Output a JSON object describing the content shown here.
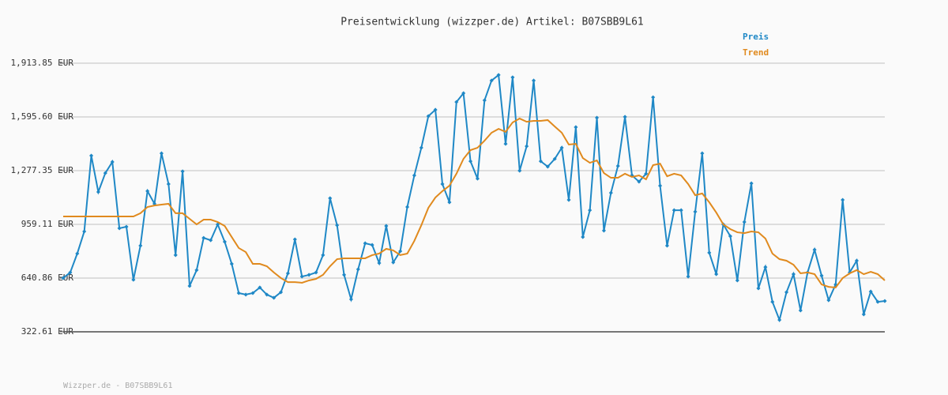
{
  "chart_data": {
    "type": "line",
    "title": "Preisentwicklung (wizzper.de) Artikel: B07SBB9L61",
    "footer": "Wizzper.de - B07SBB9L61",
    "ylim": [
      322.61,
      1913.85
    ],
    "yticks": [
      {
        "value": 322.61,
        "label": "322.61 EUR"
      },
      {
        "value": 640.86,
        "label": "640.86 EUR"
      },
      {
        "value": 959.11,
        "label": "959.11 EUR"
      },
      {
        "value": 1277.35,
        "label": "1,277.35 EUR"
      },
      {
        "value": 1595.6,
        "label": "1,595.60 EUR"
      },
      {
        "value": 1913.85,
        "label": "1,913.85 EUR"
      }
    ],
    "grid": true,
    "legend": "top-right",
    "series": [
      {
        "name": "Preis",
        "color": "#1f88c6",
        "markers": true,
        "values": [
          641,
          674,
          786,
          917,
          1366,
          1151,
          1263,
          1329,
          936,
          945,
          631,
          833,
          1156,
          1081,
          1380,
          1198,
          777,
          1273,
          594,
          688,
          879,
          865,
          959,
          856,
          725,
          552,
          543,
          552,
          585,
          543,
          524,
          557,
          669,
          870,
          650,
          660,
          674,
          777,
          1114,
          954,
          660,
          515,
          693,
          847,
          837,
          730,
          950,
          734,
          800,
          1062,
          1249,
          1413,
          1600,
          1638,
          1198,
          1090,
          1684,
          1736,
          1333,
          1230,
          1694,
          1811,
          1844,
          1436,
          1830,
          1277,
          1422,
          1811,
          1333,
          1301,
          1347,
          1413,
          1104,
          1535,
          884,
          1043,
          1591,
          922,
          1146,
          1305,
          1596,
          1249,
          1212,
          1259,
          1712,
          1188,
          833,
          1043,
          1043,
          650,
          1034,
          1380,
          791,
          664,
          959,
          889,
          627,
          973,
          1202,
          580,
          706,
          500,
          393,
          557,
          664,
          449,
          674,
          809,
          655,
          510,
          603,
          1104,
          674,
          744,
          426,
          561,
          500,
          505
        ]
      },
      {
        "name": "Trend",
        "color": "#e08a1e",
        "markers": false,
        "values": [
          1006,
          1006,
          1006,
          1006,
          1006,
          1006,
          1006,
          1006,
          1006,
          1006,
          1006,
          1025,
          1062,
          1071,
          1076,
          1081,
          1025,
          1025,
          992,
          959,
          987,
          987,
          973,
          950,
          884,
          819,
          795,
          725,
          725,
          711,
          674,
          641,
          617,
          617,
          613,
          627,
          636,
          660,
          711,
          753,
          758,
          758,
          758,
          758,
          777,
          786,
          814,
          805,
          777,
          786,
          861,
          954,
          1057,
          1118,
          1156,
          1188,
          1259,
          1347,
          1399,
          1413,
          1455,
          1502,
          1525,
          1507,
          1563,
          1586,
          1567,
          1572,
          1572,
          1577,
          1539,
          1502,
          1432,
          1436,
          1352,
          1324,
          1338,
          1263,
          1235,
          1235,
          1259,
          1240,
          1249,
          1226,
          1310,
          1319,
          1244,
          1259,
          1249,
          1198,
          1132,
          1142,
          1090,
          1029,
          959,
          931,
          912,
          907,
          917,
          912,
          875,
          786,
          753,
          744,
          720,
          669,
          674,
          664,
          603,
          589,
          585,
          641,
          669,
          688,
          664,
          678,
          664,
          627
        ]
      }
    ]
  }
}
